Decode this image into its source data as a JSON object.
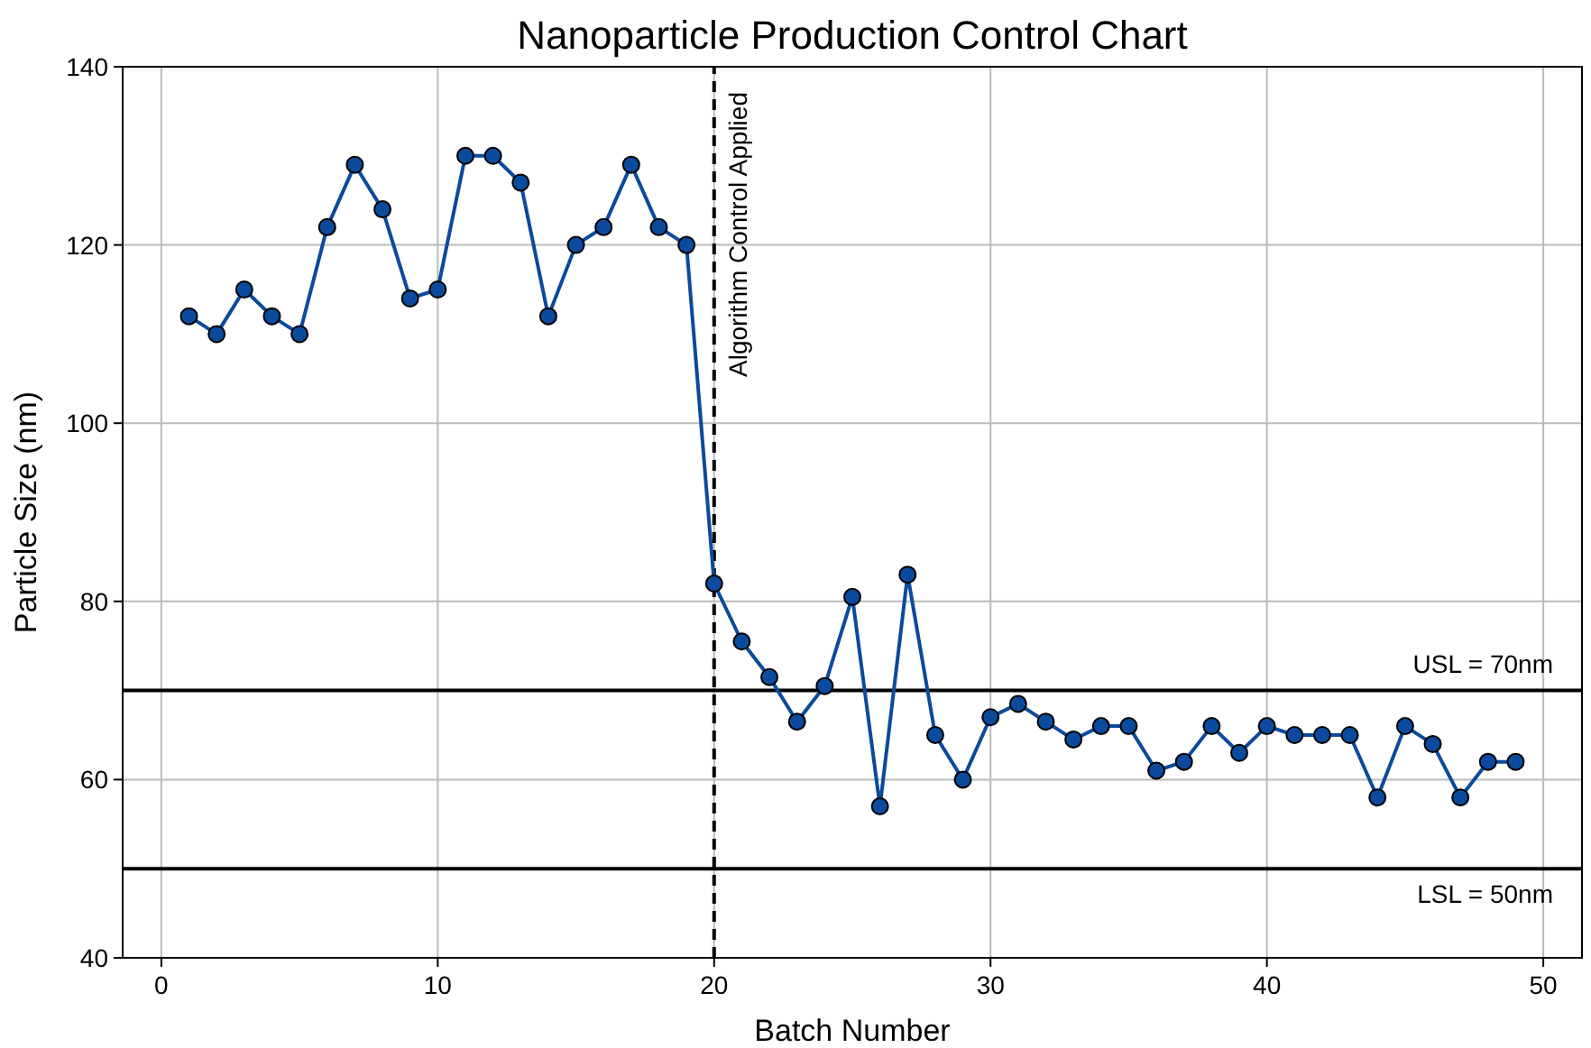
{
  "chart_data": {
    "type": "line",
    "title": "Nanoparticle Production Control Chart",
    "xlabel": "Batch Number",
    "ylabel": "Particle Size (nm)",
    "x": [
      1,
      2,
      3,
      4,
      5,
      6,
      7,
      8,
      9,
      10,
      11,
      12,
      13,
      14,
      15,
      16,
      17,
      18,
      19,
      20,
      21,
      22,
      23,
      24,
      25,
      26,
      27,
      28,
      29,
      30,
      31,
      32,
      33,
      34,
      35,
      36,
      37,
      38,
      39,
      40,
      41,
      42,
      43,
      44,
      45,
      46,
      47,
      48,
      49
    ],
    "series": [
      {
        "color": "#0b4a9c",
        "values": [
          112,
          110,
          115,
          112,
          110,
          122,
          129,
          124,
          114,
          115,
          130,
          130,
          127,
          112,
          120,
          122,
          129,
          122,
          120,
          82,
          75.5,
          71.5,
          66.5,
          70.5,
          80.5,
          57,
          83,
          65,
          60,
          67,
          68.5,
          66.5,
          64.5,
          66,
          66,
          61,
          62,
          66,
          63,
          66,
          65,
          65,
          65,
          58,
          66,
          64,
          58,
          62,
          62
        ]
      }
    ],
    "xlim": [
      -1.4,
      51.4
    ],
    "ylim": [
      40,
      140
    ],
    "xticks": [
      0,
      10,
      20,
      30,
      40,
      50
    ],
    "yticks": [
      40,
      60,
      80,
      100,
      120,
      140
    ],
    "grid": true,
    "marker": "circle",
    "line_style": "solid",
    "ref_lines": [
      {
        "axis": "x",
        "value": 20,
        "label": "Algorithm Control Applied",
        "color": "#000000",
        "line_style": "dashed"
      },
      {
        "axis": "y",
        "value": 70,
        "label": "USL = 70nm",
        "color": "#000000",
        "line_style": "solid"
      },
      {
        "axis": "y",
        "value": 50,
        "label": "LSL = 50nm",
        "color": "#000000",
        "line_style": "solid"
      }
    ]
  }
}
